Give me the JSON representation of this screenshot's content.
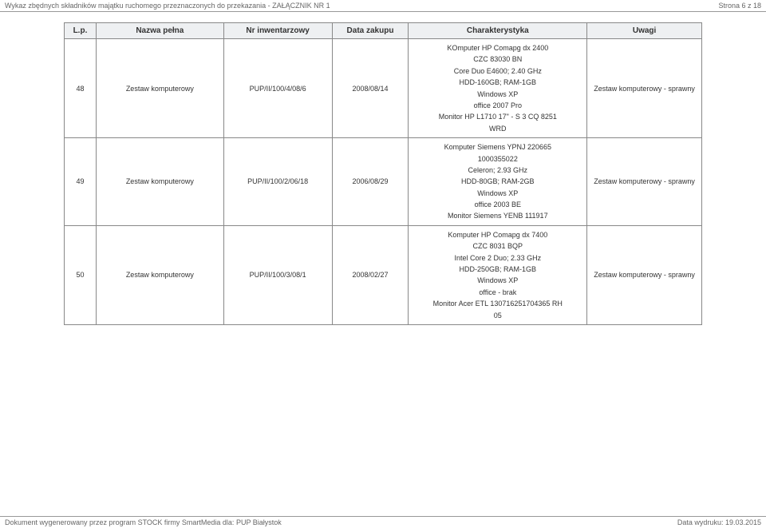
{
  "header": {
    "left": "Wykaz zbędnych składników majątku ruchomego przeznaczonych do przekazania - ZAŁĄCZNIK NR 1",
    "right": "Strona 6 z 18"
  },
  "footer": {
    "left": "Dokument wygenerowany przez program STOCK firmy SmartMedia dla: PUP Białystok",
    "right": "Data wydruku: 19.03.2015"
  },
  "columns": {
    "lp": "L.p.",
    "name": "Nazwa pełna",
    "inv": "Nr inwentarzowy",
    "date": "Data zakupu",
    "char": "Charakterystyka",
    "note": "Uwagi"
  },
  "rows": [
    {
      "lp": "48",
      "name": "Zestaw komputerowy",
      "inv": "PUP/II/100/4/08/6",
      "date": "2008/08/14",
      "char": [
        "KOmputer HP Comapg dx 2400",
        "CZC 83030 BN",
        "Core Duo E4600; 2.40 GHz",
        "HDD-160GB; RAM-1GB",
        "Windows XP",
        "office 2007 Pro",
        "Monitor HP L1710 17\" - S 3 CQ 8251",
        "WRD"
      ],
      "note": "Zestaw komputerowy - sprawny"
    },
    {
      "lp": "49",
      "name": "Zestaw komputerowy",
      "inv": "PUP/II/100/2/06/18",
      "date": "2006/08/29",
      "char": [
        "Komputer Siemens YPNJ 220665",
        "1000355022",
        "Celeron; 2.93 GHz",
        "HDD-80GB; RAM-2GB",
        "Windows XP",
        "office 2003 BE",
        "Monitor Siemens YENB 111917"
      ],
      "note": "Zestaw komputerowy - sprawny"
    },
    {
      "lp": "50",
      "name": "Zestaw komputerowy",
      "inv": "PUP/II/100/3/08/1",
      "date": "2008/02/27",
      "char": [
        "Komputer HP Comapg dx 7400",
        "CZC 8031 BQP",
        "Intel Core 2 Duo; 2.33 GHz",
        "HDD-250GB; RAM-1GB",
        "Windows XP",
        "office - brak",
        "Monitor Acer ETL 130716251704365 RH",
        "05"
      ],
      "note": "Zestaw komputerowy - sprawny"
    }
  ]
}
